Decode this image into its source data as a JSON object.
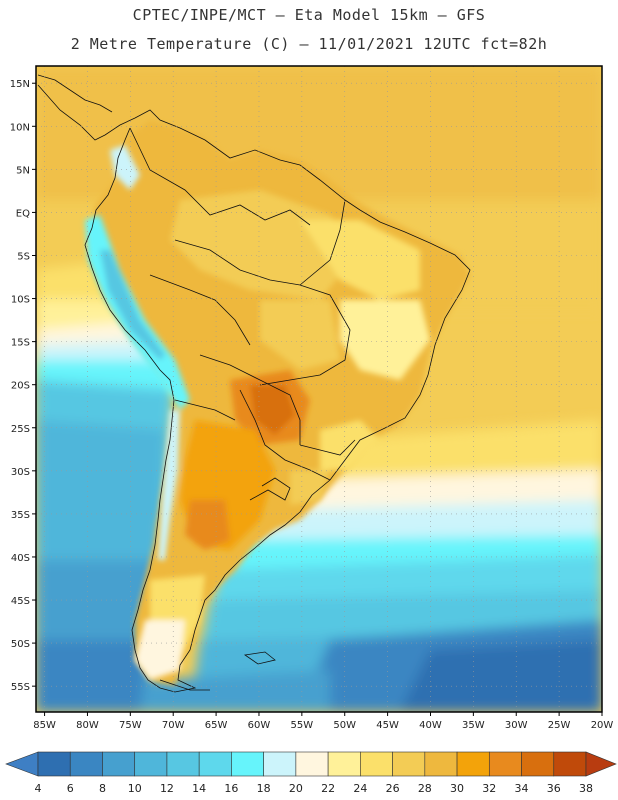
{
  "header": {
    "line1": "CPTEC/INPE/MCT –  Eta Model 15km – GFS",
    "line2": "2 Metre Temperature (C) – 11/01/2021 12UTC fct=82h"
  },
  "map": {
    "variable": "2 Metre Temperature",
    "unit": "C",
    "region": "South America",
    "lon_range": [
      -86,
      -20
    ],
    "lat_range": [
      -58,
      17
    ],
    "lat_labels": [
      "15N",
      "10N",
      "5N",
      "EQ",
      "5S",
      "10S",
      "15S",
      "20S",
      "25S",
      "30S",
      "35S",
      "40S",
      "45S",
      "50S",
      "55S"
    ],
    "lat_values": [
      15,
      10,
      5,
      0,
      -5,
      -10,
      -15,
      -20,
      -25,
      -30,
      -35,
      -40,
      -45,
      -50,
      -55
    ],
    "lon_labels": [
      "85W",
      "80W",
      "75W",
      "70W",
      "65W",
      "60W",
      "55W",
      "50W",
      "45W",
      "40W",
      "35W",
      "30W",
      "25W",
      "20W"
    ],
    "lon_values": [
      -85,
      -80,
      -75,
      -70,
      -65,
      -60,
      -55,
      -50,
      -45,
      -40,
      -35,
      -30,
      -25,
      -20
    ]
  },
  "colorbar": {
    "labels": [
      "4",
      "6",
      "8",
      "10",
      "12",
      "14",
      "16",
      "18",
      "20",
      "22",
      "24",
      "26",
      "28",
      "30",
      "32",
      "34",
      "36",
      "38"
    ],
    "colors": [
      "#2e6fb1",
      "#3a86c2",
      "#46a0cf",
      "#4fb6da",
      "#57c7e2",
      "#5ed8ec",
      "#66f4fb",
      "#ccf4fb",
      "#fff6df",
      "#fff199",
      "#fbe06a",
      "#f3cc55",
      "#eeb83e",
      "#f3a30a",
      "#e88a1e",
      "#d86f0e",
      "#c04a0a"
    ],
    "low_color": "#3e7fc4",
    "high_color": "#b83c10"
  }
}
